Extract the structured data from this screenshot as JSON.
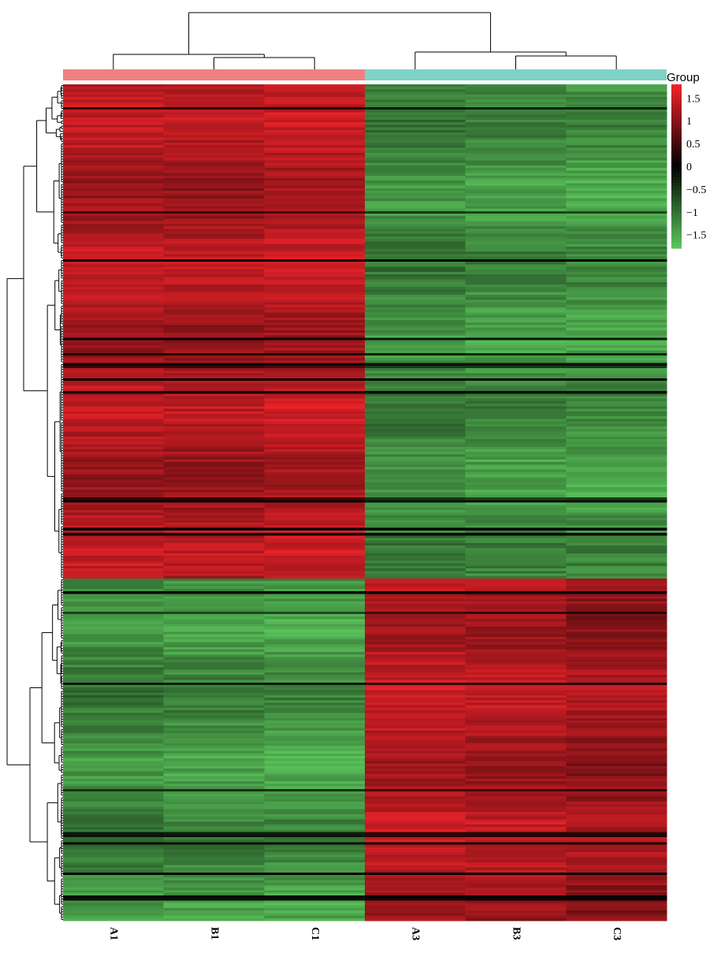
{
  "chart_data": {
    "type": "heatmap",
    "title": "",
    "columns": [
      "A1",
      "B1",
      "C1",
      "A3",
      "B3",
      "C3"
    ],
    "annotation": {
      "title": "Group",
      "groups": [
        {
          "color": "#F08080",
          "columns": [
            "A1",
            "B1",
            "C1"
          ]
        },
        {
          "color": "#7FD3C6",
          "columns": [
            "A3",
            "B3",
            "C3"
          ]
        }
      ]
    },
    "colorbar": {
      "min": -1.8,
      "max": 1.8,
      "ticks": [
        1.5,
        1,
        0.5,
        0,
        -0.5,
        -1,
        -1.5
      ],
      "tick_labels": [
        "1.5",
        "1",
        "0.5",
        "0",
        "−0.5",
        "−1",
        "−1.5"
      ],
      "low_color": "#5CC85C",
      "mid_color": "#000000",
      "high_color": "#F2232B"
    },
    "row_count": 330,
    "row_blocks": [
      {
        "rows": 195,
        "values": [
          1.3,
          1.25,
          1.35,
          -1.2,
          -1.3,
          -1.35
        ]
      },
      {
        "rows": 135,
        "values": [
          -1.2,
          -1.3,
          -1.35,
          1.35,
          1.3,
          1.15
        ]
      }
    ],
    "row_dendrogram": "two main clusters matching row blocks",
    "column_dendrogram": [
      [
        "A1",
        [
          "B1",
          "C1"
        ]
      ],
      [
        "A3",
        [
          "B3",
          "C3"
        ]
      ]
    ]
  }
}
